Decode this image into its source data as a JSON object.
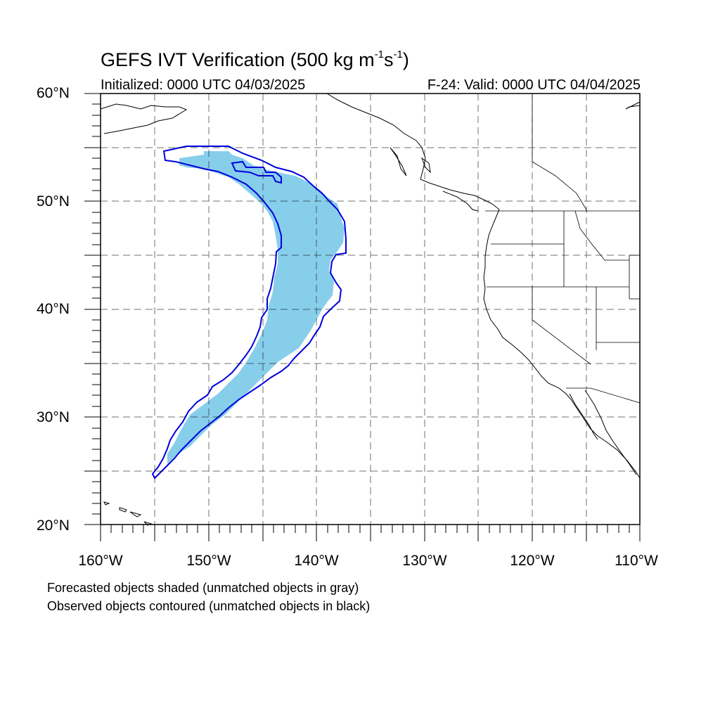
{
  "title": {
    "prefix": "GEFS IVT Verification (500 kg m",
    "exp1": "-1",
    "mid": "s",
    "exp2": "-1",
    "suffix": ")"
  },
  "init_label": "Initialized: 0000 UTC 04/03/2025",
  "valid_label": "F-24: Valid: 0000 UTC 04/04/2025",
  "lat_labels": [
    "60°N",
    "50°N",
    "40°N",
    "30°N",
    "20°N"
  ],
  "lon_labels": [
    "160°W",
    "150°W",
    "140°W",
    "130°W",
    "120°W",
    "110°W"
  ],
  "footnotes": [
    "Forecasted objects shaded (unmatched objects in gray)",
    "Observed objects contoured (unmatched objects in black)"
  ],
  "colors": {
    "forecast_fill": "#87ceeb",
    "observed_contour": "#0000dd",
    "grid": "#000000"
  },
  "map_extent": {
    "lon_min": -160,
    "lon_max": -110,
    "lat_min": 20,
    "lat_max": 60
  }
}
